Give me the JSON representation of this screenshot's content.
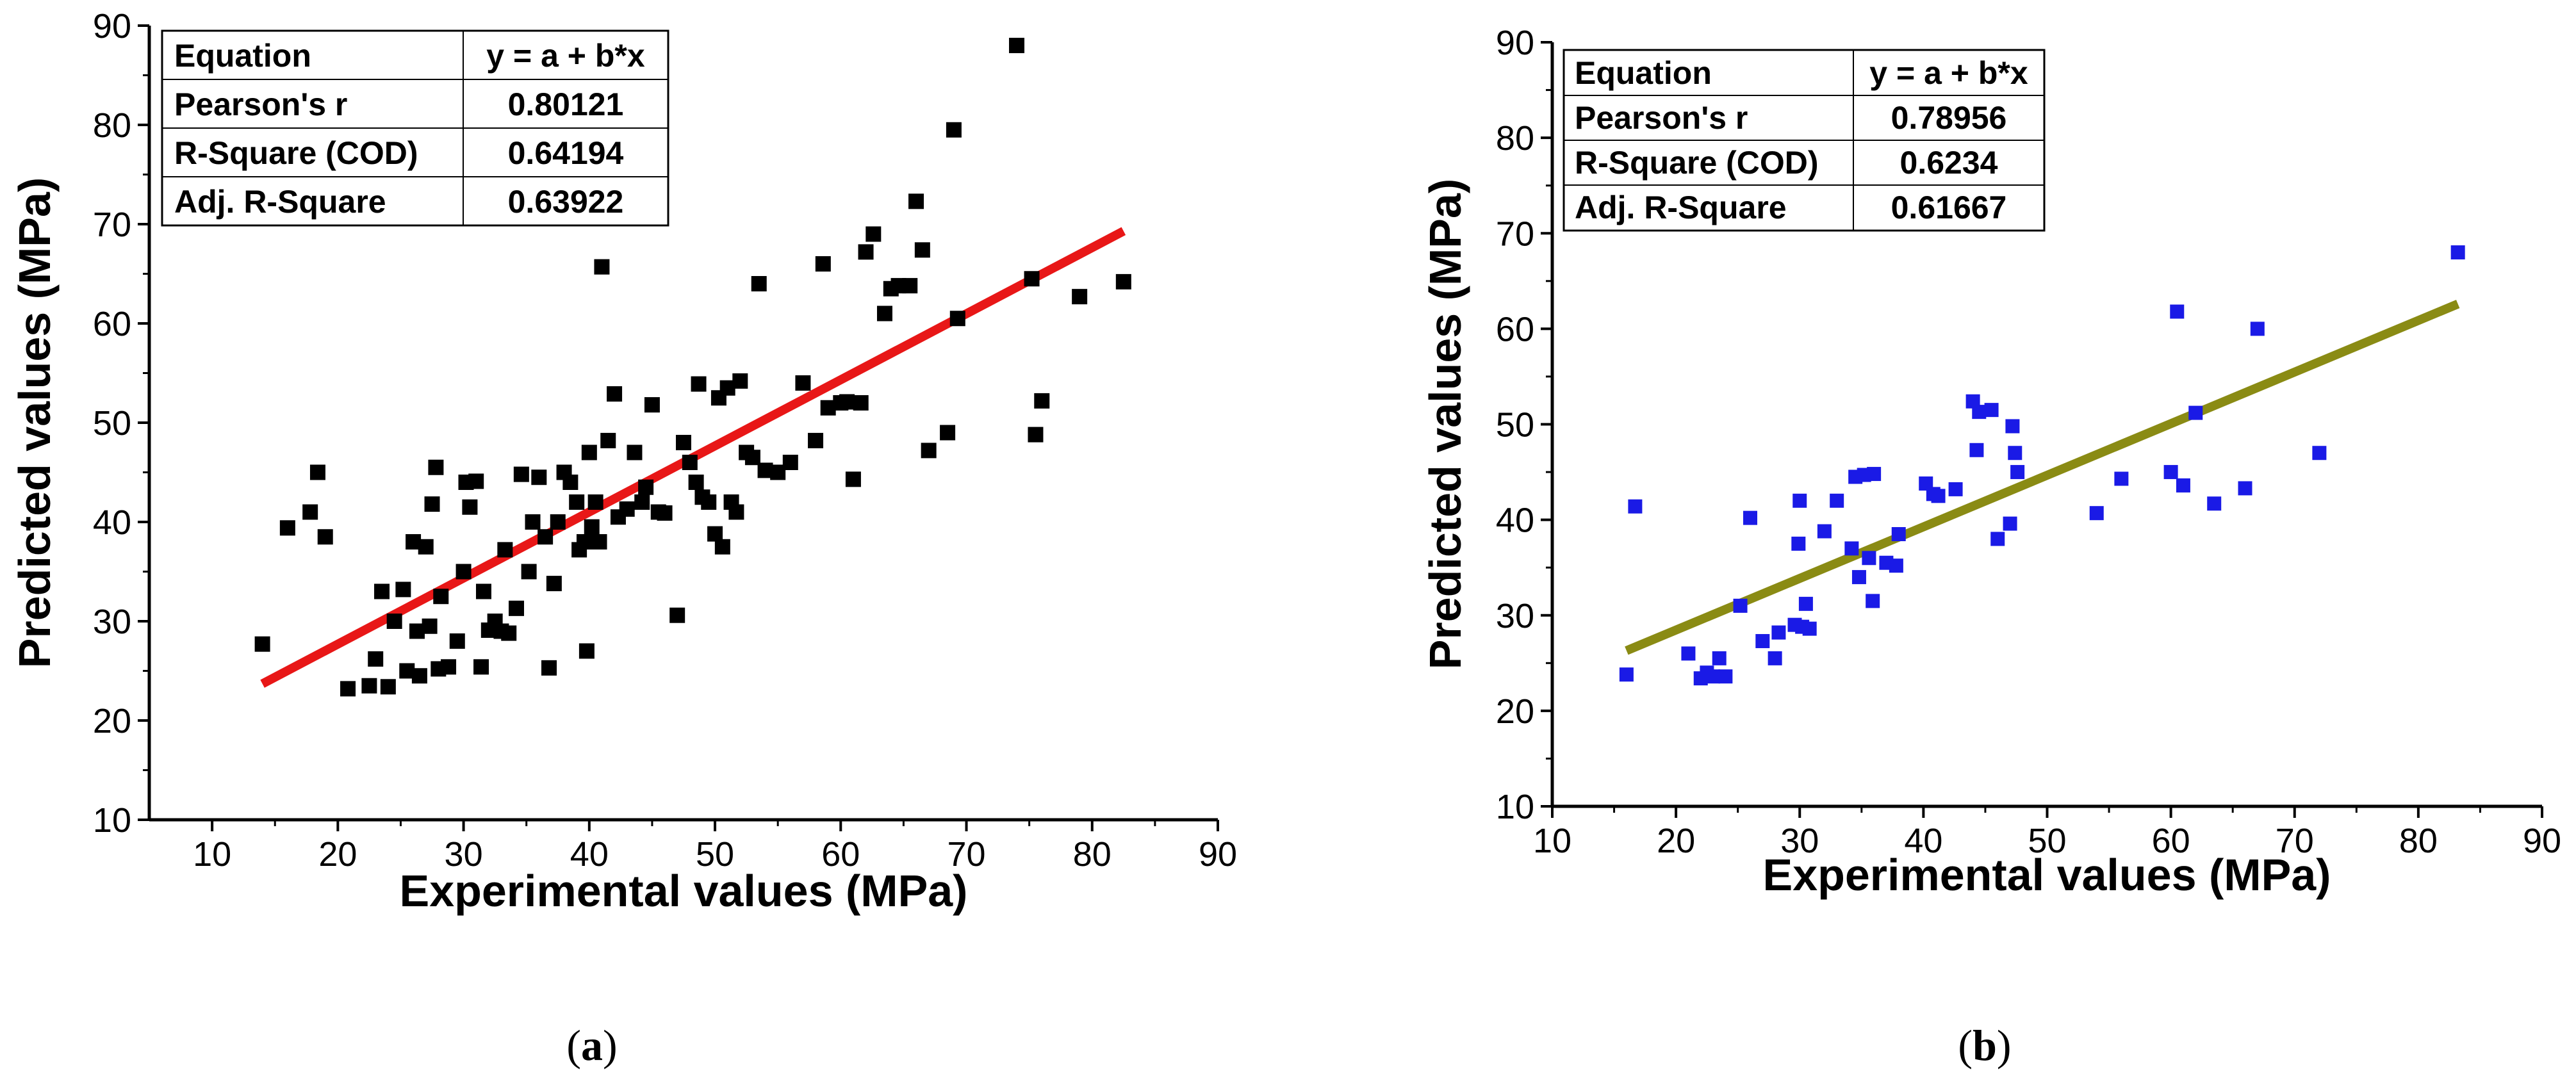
{
  "chart_data": [
    {
      "type": "scatter",
      "panel_label": "a",
      "xlabel": "Experimental values (MPa)",
      "ylabel": "Predicted values (MPa)",
      "xlim": [
        5,
        90
      ],
      "ylim": [
        10,
        90
      ],
      "xticks": [
        10,
        20,
        30,
        40,
        50,
        60,
        70,
        80,
        90
      ],
      "yticks": [
        10,
        20,
        30,
        40,
        50,
        60,
        70,
        80,
        90
      ],
      "marker_color": "#000000",
      "fit_color": "#e81717",
      "fit_line": {
        "x": [
          14,
          82.5
        ],
        "y": [
          23.7,
          69.3
        ]
      },
      "stats_table": [
        [
          "Equation",
          "y = a + b*x"
        ],
        [
          "Pearson's r",
          "0.80121"
        ],
        [
          "R-Square (COD)",
          "0.64194"
        ],
        [
          "Adj. R-Square",
          "0.63922"
        ]
      ],
      "points": [
        [
          14,
          27.7
        ],
        [
          16,
          39.4
        ],
        [
          17.8,
          41
        ],
        [
          18.4,
          45
        ],
        [
          19,
          38.5
        ],
        [
          20.8,
          23.2
        ],
        [
          22.5,
          23.5
        ],
        [
          23,
          26.2
        ],
        [
          23.5,
          33
        ],
        [
          24,
          23.4
        ],
        [
          24.5,
          30
        ],
        [
          25.2,
          33.2
        ],
        [
          25.5,
          25
        ],
        [
          26,
          38
        ],
        [
          26.3,
          29
        ],
        [
          26.5,
          24.5
        ],
        [
          27,
          37.5
        ],
        [
          27.3,
          29.5
        ],
        [
          27.5,
          41.8
        ],
        [
          27.8,
          45.5
        ],
        [
          28,
          25.2
        ],
        [
          28.2,
          32.5
        ],
        [
          28.8,
          25.4
        ],
        [
          29.5,
          28
        ],
        [
          30,
          35
        ],
        [
          30.2,
          44
        ],
        [
          30.5,
          41.5
        ],
        [
          31,
          44.1
        ],
        [
          31.4,
          25.4
        ],
        [
          31.6,
          33
        ],
        [
          32,
          29.1
        ],
        [
          32.5,
          30
        ],
        [
          33,
          29
        ],
        [
          33.3,
          37.2
        ],
        [
          33.6,
          28.8
        ],
        [
          34.2,
          31.3
        ],
        [
          34.6,
          44.8
        ],
        [
          35.2,
          35
        ],
        [
          35.5,
          40
        ],
        [
          36,
          44.5
        ],
        [
          36.5,
          38.5
        ],
        [
          36.8,
          25.3
        ],
        [
          37.2,
          33.8
        ],
        [
          37.5,
          40
        ],
        [
          38,
          45
        ],
        [
          38.5,
          44
        ],
        [
          39,
          42
        ],
        [
          39.2,
          37.2
        ],
        [
          39.6,
          38
        ],
        [
          39.8,
          27
        ],
        [
          40,
          47
        ],
        [
          40.2,
          39.5
        ],
        [
          40.5,
          42
        ],
        [
          40.8,
          38
        ],
        [
          41,
          65.7
        ],
        [
          41.5,
          48.2
        ],
        [
          42,
          52.9
        ],
        [
          42.3,
          40.5
        ],
        [
          43,
          41.3
        ],
        [
          43.6,
          47
        ],
        [
          44.2,
          42
        ],
        [
          44.5,
          43.5
        ],
        [
          45,
          51.8
        ],
        [
          45.5,
          41
        ],
        [
          46,
          40.9
        ],
        [
          47,
          30.6
        ],
        [
          47.5,
          48
        ],
        [
          48,
          46
        ],
        [
          48.5,
          44
        ],
        [
          48.7,
          53.9
        ],
        [
          49,
          42.5
        ],
        [
          49.5,
          42
        ],
        [
          50,
          38.8
        ],
        [
          50.3,
          52.5
        ],
        [
          50.6,
          37.5
        ],
        [
          51,
          53.5
        ],
        [
          51.3,
          42
        ],
        [
          51.7,
          41
        ],
        [
          52,
          54.2
        ],
        [
          52.5,
          47
        ],
        [
          53,
          46.5
        ],
        [
          53.5,
          64
        ],
        [
          54,
          45.2
        ],
        [
          55,
          45
        ],
        [
          56,
          46
        ],
        [
          57,
          54
        ],
        [
          58,
          48.2
        ],
        [
          58.6,
          66
        ],
        [
          59,
          51.5
        ],
        [
          60,
          52
        ],
        [
          60.5,
          52.1
        ],
        [
          61,
          44.3
        ],
        [
          61.6,
          52
        ],
        [
          62,
          67.2
        ],
        [
          62.6,
          69
        ],
        [
          63.5,
          61
        ],
        [
          64,
          63.5
        ],
        [
          64.6,
          63.8
        ],
        [
          65.5,
          63.8
        ],
        [
          66,
          72.3
        ],
        [
          66.5,
          67.4
        ],
        [
          67,
          47.2
        ],
        [
          68.5,
          49
        ],
        [
          69,
          79.5
        ],
        [
          69.3,
          60.5
        ],
        [
          74,
          88
        ],
        [
          75.2,
          64.5
        ],
        [
          75.5,
          48.8
        ],
        [
          76,
          52.2
        ],
        [
          79,
          62.7
        ],
        [
          82.5,
          64.2
        ]
      ]
    },
    {
      "type": "scatter",
      "panel_label": "b",
      "xlabel": "Experimental values (MPa)",
      "ylabel": "Predicted values (MPa)",
      "xlim": [
        10,
        90
      ],
      "ylim": [
        10,
        90
      ],
      "xticks": [
        10,
        20,
        30,
        40,
        50,
        60,
        70,
        80,
        90
      ],
      "yticks": [
        10,
        20,
        30,
        40,
        50,
        60,
        70,
        80,
        90
      ],
      "marker_color": "#1a1ae6",
      "fit_color": "#8a8b14",
      "fit_line": {
        "x": [
          16,
          83.2
        ],
        "y": [
          26.3,
          62.6
        ]
      },
      "stats_table": [
        [
          "Equation",
          "y = a + b*x"
        ],
        [
          "Pearson's r",
          "0.78956"
        ],
        [
          "R-Square (COD)",
          "0.6234"
        ],
        [
          "Adj. R-Square",
          "0.61667"
        ]
      ],
      "points": [
        [
          16,
          23.8
        ],
        [
          16.7,
          41.4
        ],
        [
          21,
          26
        ],
        [
          22,
          23.4
        ],
        [
          22.5,
          24
        ],
        [
          23,
          23.6
        ],
        [
          23.5,
          25.5
        ],
        [
          24,
          23.6
        ],
        [
          25.2,
          31
        ],
        [
          26,
          40.2
        ],
        [
          27,
          27.3
        ],
        [
          28,
          25.5
        ],
        [
          28.3,
          28.2
        ],
        [
          29.6,
          29
        ],
        [
          29.9,
          37.5
        ],
        [
          30,
          42
        ],
        [
          30.2,
          28.8
        ],
        [
          30.5,
          31.2
        ],
        [
          30.8,
          28.6
        ],
        [
          32,
          38.8
        ],
        [
          33,
          42
        ],
        [
          34.2,
          37
        ],
        [
          34.5,
          44.5
        ],
        [
          34.8,
          34
        ],
        [
          35.2,
          44.7
        ],
        [
          35.6,
          36
        ],
        [
          35.9,
          31.5
        ],
        [
          36,
          44.8
        ],
        [
          37,
          35.5
        ],
        [
          37.8,
          35.2
        ],
        [
          38,
          38.5
        ],
        [
          40.2,
          43.8
        ],
        [
          40.8,
          42.7
        ],
        [
          41.2,
          42.5
        ],
        [
          42.6,
          43.2
        ],
        [
          44,
          52.4
        ],
        [
          44.3,
          47.3
        ],
        [
          44.5,
          51.3
        ],
        [
          45.5,
          51.5
        ],
        [
          46,
          38
        ],
        [
          47,
          39.6
        ],
        [
          47.2,
          49.8
        ],
        [
          47.4,
          47
        ],
        [
          47.6,
          45
        ],
        [
          54,
          40.7
        ],
        [
          56,
          44.3
        ],
        [
          60,
          45
        ],
        [
          60.5,
          61.8
        ],
        [
          61,
          43.6
        ],
        [
          62,
          51.2
        ],
        [
          63.5,
          41.7
        ],
        [
          66,
          43.3
        ],
        [
          67,
          60
        ],
        [
          72,
          47
        ],
        [
          83.2,
          68
        ]
      ]
    }
  ]
}
